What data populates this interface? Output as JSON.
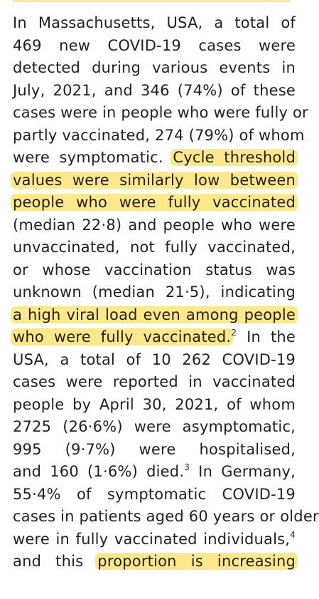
{
  "lines": [
    {
      "pre": "In Massachusetts, USA, a total of",
      "hl": "",
      "post": "",
      "sup": "",
      "after": ""
    },
    {
      "pre": "469 new COVID-19 cases were",
      "hl": "",
      "post": "",
      "sup": "",
      "after": ""
    },
    {
      "pre": "detected during various events in",
      "hl": "",
      "post": "",
      "sup": "",
      "after": ""
    },
    {
      "pre": "July, 2021, and 346 (74%) of these",
      "hl": "",
      "post": "",
      "sup": "",
      "after": ""
    },
    {
      "pre": "cases were in people who were fully or",
      "hl": "",
      "post": "",
      "sup": "",
      "after": ""
    },
    {
      "pre": "partly vaccinated, 274 (79%) of whom",
      "hl": "",
      "post": "",
      "sup": "",
      "after": ""
    },
    {
      "pre": "were symptomatic. ",
      "hl": "Cycle threshold",
      "post": "",
      "sup": "",
      "after": ""
    },
    {
      "pre": "",
      "hl": "values were similarly low between",
      "post": "",
      "sup": "",
      "after": ""
    },
    {
      "pre": "",
      "hl": "people who were fully vaccinated",
      "post": "",
      "sup": "",
      "after": ""
    },
    {
      "pre": "(median 22·8) and people who were",
      "hl": "",
      "post": "",
      "sup": "",
      "after": ""
    },
    {
      "pre": "unvaccinated, not fully vaccinated,",
      "hl": "",
      "post": "",
      "sup": "",
      "after": ""
    },
    {
      "pre": "or whose vaccination status was",
      "hl": "",
      "post": "",
      "sup": "",
      "after": ""
    },
    {
      "pre": "unknown (median 21·5), indicating",
      "hl": "",
      "post": "",
      "sup": "",
      "after": ""
    },
    {
      "pre": "",
      "hl": "a high viral load even among people",
      "post": "",
      "sup": "",
      "after": ""
    },
    {
      "pre": "",
      "hl": "who were fully vaccinated.",
      "post": "",
      "sup": "2",
      "after": " In the"
    },
    {
      "pre": "USA, a total of 10 262 COVID-19",
      "hl": "",
      "post": "",
      "sup": "",
      "after": ""
    },
    {
      "pre": "cases were reported in vaccinated",
      "hl": "",
      "post": "",
      "sup": "",
      "after": ""
    },
    {
      "pre": "people by April 30, 2021, of whom",
      "hl": "",
      "post": "",
      "sup": "",
      "after": ""
    },
    {
      "pre": "2725 (26·6%) were asymptomatic,",
      "hl": "",
      "post": "",
      "sup": "",
      "after": ""
    },
    {
      "pre": "995 (9·7%) were hospitalised,",
      "hl": "",
      "post": "",
      "sup": "",
      "after": ""
    },
    {
      "pre": "and 160 (1·6%) died.",
      "hl": "",
      "post": "",
      "sup": "3",
      "after": " In Germany,"
    },
    {
      "pre": "55·4% of symptomatic COVID-19",
      "hl": "",
      "post": "",
      "sup": "",
      "after": ""
    },
    {
      "pre": "cases in patients aged 60 years or older",
      "hl": "",
      "post": "",
      "sup": "",
      "after": ""
    },
    {
      "pre": "were in fully vaccinated individuals,",
      "hl": "",
      "post": "",
      "sup": "4",
      "after": ""
    },
    {
      "pre": "and this ",
      "hl": "proportion is increasing",
      "post": "",
      "sup": "",
      "after": ""
    }
  ]
}
